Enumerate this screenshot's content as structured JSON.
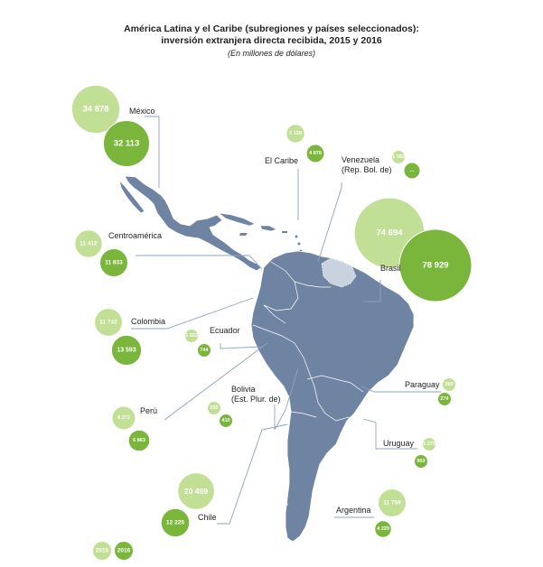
{
  "title_line1": "América Latina y el Caribe (subregiones y países seleccionados):",
  "title_line2": "inversión extranjera directa recibida, 2015 y 2016",
  "subtitle": "(En millones de dólares)",
  "colors": {
    "map": "#6f84a3",
    "map_light": "#c9d3df",
    "y2015": "#c2df96",
    "y2016": "#7bb63c",
    "line": "#8ea2bd"
  },
  "chart_data": {
    "type": "bubble-map",
    "title": "América Latina y el Caribe (subregiones y países seleccionados): inversión extranjera directa recibida, 2015 y 2016",
    "subtitle": "(En millones de dólares)",
    "legend": [
      "2015",
      "2016"
    ],
    "series": [
      {
        "name": "2015"
      },
      {
        "name": "2016"
      }
    ],
    "entities": [
      {
        "name": "México",
        "v2015": 34878,
        "v2016": 32113,
        "label2015": "34 878",
        "label2016": "32 113"
      },
      {
        "name": "El Caribe",
        "v2015": 5129,
        "v2016": 4878,
        "label2015": "5 129",
        "label2016": "4 878"
      },
      {
        "name": "Venezuela (Rep. Bol. de)",
        "name_line1": "Venezuela",
        "name_line2": "(Rep. Bol. de)",
        "v2015": 1383,
        "v2016": null,
        "label2015": "1 383",
        "label2016": "..."
      },
      {
        "name": "Centroamérica",
        "v2015": 11412,
        "v2016": 11833,
        "label2015": "11 412",
        "label2016": "11 833"
      },
      {
        "name": "Brasil",
        "v2015": 74694,
        "v2016": 78929,
        "label2015": "74 694",
        "label2016": "78 929"
      },
      {
        "name": "Colombia",
        "v2015": 11732,
        "v2016": 13593,
        "label2015": "11 732",
        "label2016": "13 593"
      },
      {
        "name": "Ecuador",
        "v2015": 1322,
        "v2016": 744,
        "label2015": "1 322",
        "label2016": "744"
      },
      {
        "name": "Bolivia (Est. Plur. de)",
        "name_line1": "Bolivia",
        "name_line2": "(Est. Plur. de)",
        "v2015": 555,
        "v2016": 410,
        "label2015": "555",
        "label2016": "410"
      },
      {
        "name": "Paraguay",
        "v2015": 260,
        "v2016": 274,
        "label2015": "260",
        "label2016": "274"
      },
      {
        "name": "Perú",
        "v2015": 8272,
        "v2016": 6863,
        "label2015": "8 272",
        "label2016": "6 863"
      },
      {
        "name": "Uruguay",
        "v2015": 1279,
        "v2016": 953,
        "label2015": "1 279",
        "label2016": "953"
      },
      {
        "name": "Chile",
        "v2015": 20469,
        "v2016": 12225,
        "label2015": "20 469",
        "label2016": "12 225"
      },
      {
        "name": "Argentina",
        "v2015": 11759,
        "v2016": 4229,
        "label2015": "11 759",
        "label2016": "4 229"
      }
    ]
  }
}
